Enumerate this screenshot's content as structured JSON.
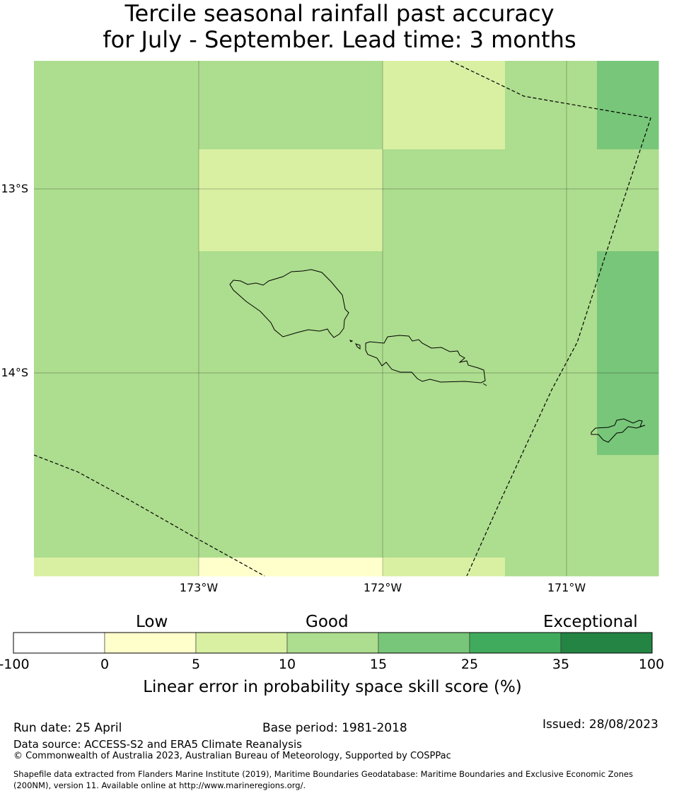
{
  "title": {
    "line1": "Tercile seasonal rainfall past accuracy",
    "line2": "for July - September. Lead time: 3 months"
  },
  "map": {
    "lat_labels": [
      "13°S",
      "14°S"
    ],
    "lon_labels": [
      "173°W",
      "172°W",
      "171°W"
    ],
    "cells": [
      [
        "good",
        "good",
        "good",
        "good",
        "low",
        "low",
        "good",
        "good",
        "vgood"
      ],
      [
        "good",
        "good",
        "low",
        "low",
        "good",
        "good",
        "good",
        "good",
        "good"
      ],
      [
        "good",
        "good",
        "good",
        "good",
        "good",
        "good",
        "good",
        "good",
        "vgood"
      ],
      [
        "good",
        "good",
        "good",
        "good",
        "good",
        "good",
        "good",
        "good",
        "vgood"
      ],
      [
        "good",
        "good",
        "good",
        "good",
        "good",
        "good",
        "good",
        "good",
        "good"
      ],
      [
        "low",
        "low",
        "vlow",
        "vlow",
        "low",
        "low",
        "good",
        "good",
        "good"
      ]
    ]
  },
  "colorbar": {
    "categories": [
      "Low",
      "Good",
      "Exceptional"
    ],
    "ticks": [
      "-100",
      "0",
      "5",
      "10",
      "15",
      "25",
      "35",
      "100"
    ],
    "colors": [
      "#ffffff",
      "#ffffcc",
      "#d9f0a3",
      "#addd8e",
      "#78c679",
      "#41ab5d",
      "#238443"
    ],
    "label": "Linear error in probability space skill score (%)"
  },
  "colors": {
    "vlow": "#ffffcc",
    "low": "#d9f0a3",
    "good": "#addd8e",
    "vgood": "#78c679"
  },
  "footer": {
    "run_date": "Run date: 25 April",
    "base_period": "Base period: 1981-2018",
    "issued": "Issued: 28/08/2023",
    "data_source": "Data source: ACCESS-S2 and ERA5 Climate Reanalysis",
    "copyright": "© Commonwealth of Australia 2023, Australian Bureau of Meteorology, Supported by COSPPac",
    "shapefile_line1": "Shapefile data extracted from Flanders Marine Institute (2019), Maritime Boundaries Geodatabase: Maritime Boundaries and Exclusive Economic Zones",
    "shapefile_line2": "(200NM), version 11. Available online at http://www.marineregions.org/."
  }
}
